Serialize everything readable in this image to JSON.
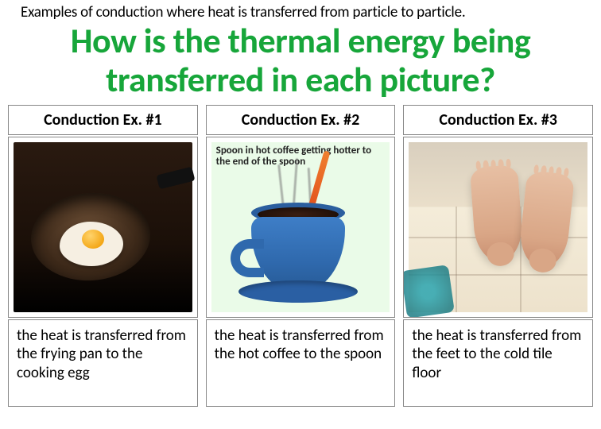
{
  "intro_text": "Examples of conduction where heat is transferred from particle to particle.",
  "main_question": "How is the thermal energy being transferred in each picture?",
  "colors": {
    "question_color": "#17a63a",
    "border_color": "#888888",
    "background": "#ffffff"
  },
  "columns": [
    {
      "header": "Conduction Ex. #1",
      "image_kind": "frying-pan-egg",
      "image_desc": "An egg frying in a dark pan on a stove",
      "caption": "the heat is transferred from the frying pan to the cooking egg"
    },
    {
      "header": "Conduction Ex. #2",
      "image_kind": "coffee-spoon",
      "image_desc": "A blue coffee cup with a spoon; steam rising",
      "inner_label": "Spoon in hot coffee getting hotter to the end of the spoon",
      "caption": "the heat is transferred from the hot coffee to the spoon"
    },
    {
      "header": "Conduction Ex. #3",
      "image_kind": "feet-tile-floor",
      "image_desc": "Bare feet standing on a tile floor",
      "caption": "the heat is transferred from the feet to the cold tile floor"
    }
  ]
}
